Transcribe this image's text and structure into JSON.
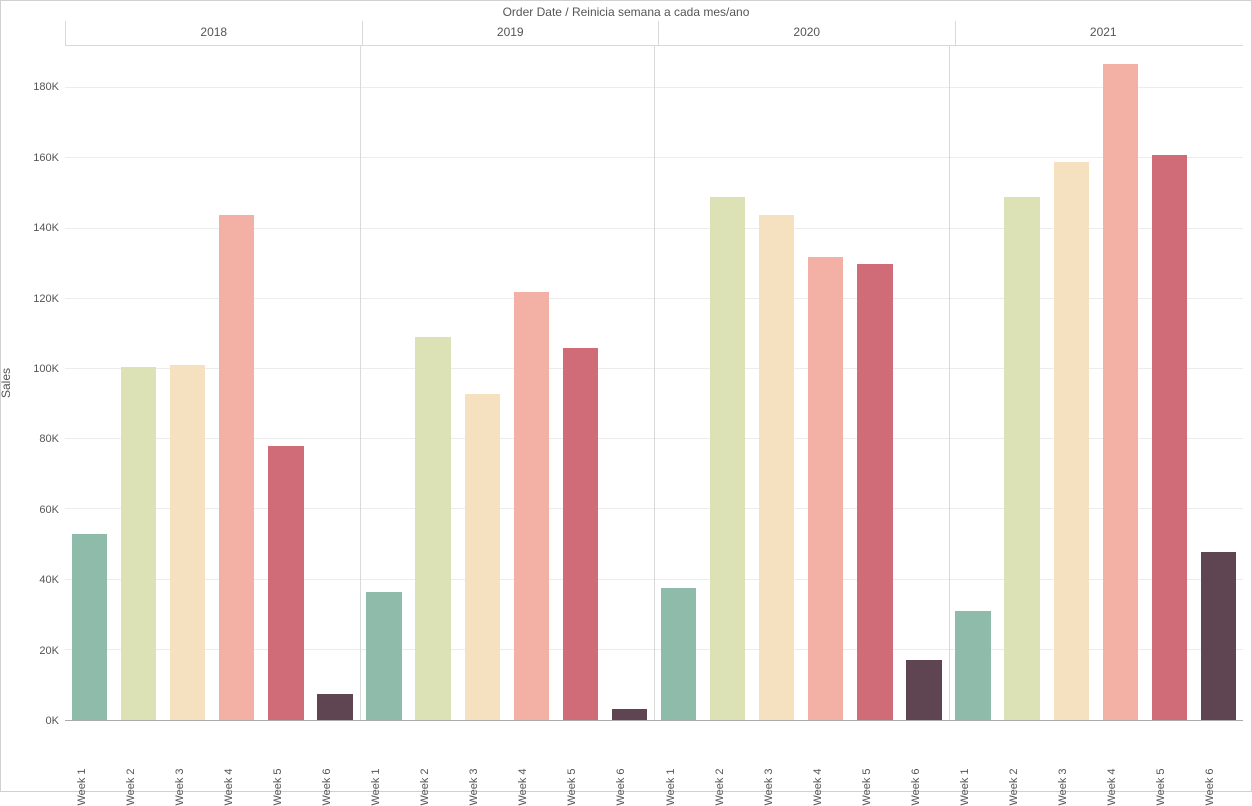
{
  "chart": {
    "type": "bar",
    "title": "Order Date  /  Reinicia semana a cada mes/ano",
    "title_fontsize": 12,
    "title_color": "#555555",
    "y_label": "Sales",
    "y_label_fontsize": 12,
    "background_color": "#ffffff",
    "grid_color": "#ececec",
    "panel_divider_color": "#d9d9d9",
    "axis_text_color": "#555555",
    "border_color": "#d0d0d0",
    "y": {
      "min": 0,
      "max": 192000,
      "ticks": [
        0,
        20000,
        40000,
        60000,
        80000,
        100000,
        120000,
        140000,
        160000,
        180000
      ],
      "tick_labels": [
        "0K",
        "20K",
        "40K",
        "60K",
        "80K",
        "100K",
        "120K",
        "140K",
        "160K",
        "180K"
      ]
    },
    "categories": [
      "Week 1",
      "Week 2",
      "Week 3",
      "Week 4",
      "Week 5",
      "Week 6"
    ],
    "category_colors": [
      "#8fbbaa",
      "#dde2b6",
      "#f5e0c0",
      "#f3b0a4",
      "#d06c78",
      "#5f4551"
    ],
    "bar_width_ratio": 0.72,
    "panels": [
      {
        "label": "2018",
        "values": [
          53000,
          100500,
          101000,
          144000,
          78000,
          7500
        ]
      },
      {
        "label": "2019",
        "values": [
          36500,
          109000,
          93000,
          122000,
          106000,
          3000
        ]
      },
      {
        "label": "2020",
        "values": [
          37500,
          149000,
          144000,
          132000,
          130000,
          17000
        ]
      },
      {
        "label": "2021",
        "values": [
          31000,
          149000,
          159000,
          187000,
          161000,
          48000
        ]
      }
    ]
  }
}
